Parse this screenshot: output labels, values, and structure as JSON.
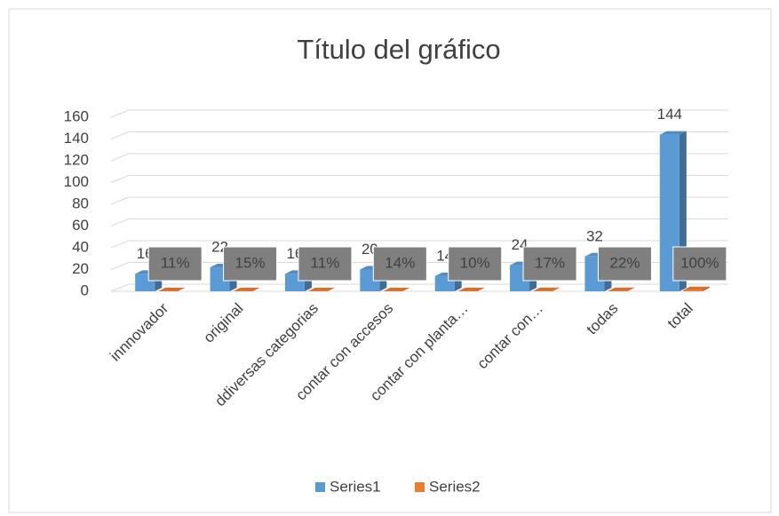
{
  "chart_data": {
    "type": "bar3d",
    "title": "Título del gráfico",
    "categories": [
      "innnovador",
      "original",
      "ddiversas categorias",
      "contar con accesos",
      "contar con planta…",
      "contar con…",
      "todas",
      "total"
    ],
    "series": [
      {
        "name": "Series1",
        "color": "#5b9bd5",
        "values": [
          16,
          22,
          16,
          20,
          14,
          24,
          32,
          144
        ]
      },
      {
        "name": "Series2",
        "color": "#ed7d31",
        "values": [
          0.11,
          0.15,
          0.11,
          0.14,
          0.1,
          0.17,
          0.22,
          1.0
        ],
        "value_labels": [
          "11%",
          "15%",
          "11%",
          "14%",
          "10%",
          "17%",
          "22%",
          "100%"
        ]
      }
    ],
    "ylim": [
      0,
      160
    ],
    "yticks": [
      0,
      20,
      40,
      60,
      80,
      100,
      120,
      140,
      160
    ],
    "grid": true,
    "legend": "bottom"
  }
}
